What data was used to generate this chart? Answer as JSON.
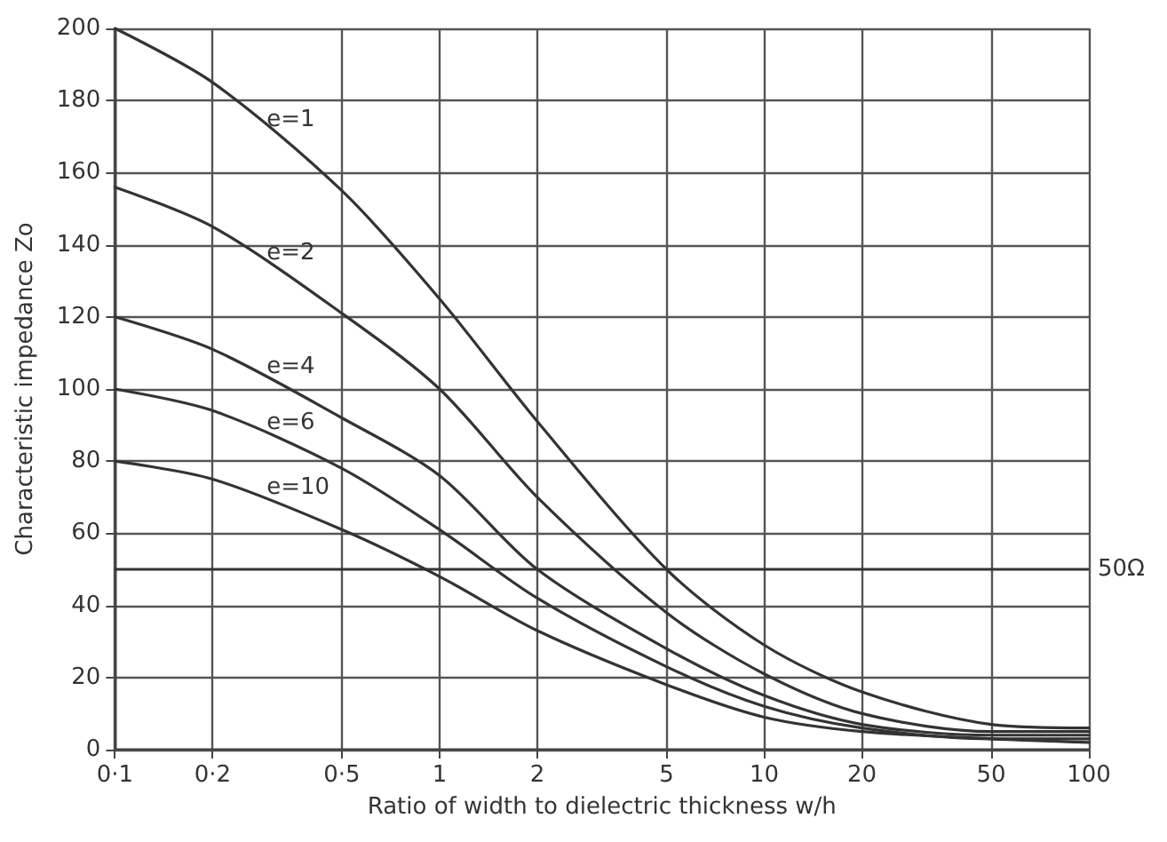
{
  "chart_data": {
    "type": "line",
    "xlabel": "Ratio of width to dielectric thickness w/h",
    "ylabel": "Characteristic impedance Zo",
    "x": [
      0.1,
      0.2,
      0.5,
      1,
      2,
      5,
      10,
      20,
      50,
      100
    ],
    "series": [
      {
        "name": "e=1",
        "color": "#333333",
        "values": [
          200,
          185,
          155,
          125,
          91,
          50,
          29,
          16,
          7,
          6
        ]
      },
      {
        "name": "e=2",
        "color": "#333333",
        "values": [
          156,
          145,
          121,
          100,
          70,
          38,
          21,
          10,
          5,
          5
        ]
      },
      {
        "name": "e=4",
        "color": "#333333",
        "values": [
          120,
          111,
          92,
          76,
          50,
          28,
          15,
          7,
          4,
          4
        ]
      },
      {
        "name": "e=6",
        "color": "#333333",
        "values": [
          100,
          94,
          78,
          61,
          42,
          23,
          12,
          6,
          3,
          3
        ]
      },
      {
        "name": "e=10",
        "color": "#333333",
        "values": [
          80,
          75,
          61,
          48,
          33,
          18,
          9,
          5,
          3,
          2
        ]
      }
    ],
    "log": "x",
    "xlim": [
      0.1,
      100
    ],
    "xticks": [
      {
        "value": 0.1,
        "label": "0·1"
      },
      {
        "value": 0.2,
        "label": "0·2"
      },
      {
        "value": 0.5,
        "label": "0·5"
      },
      1,
      2,
      5,
      10,
      20,
      50,
      100
    ],
    "ylim": [
      0,
      200
    ],
    "yticks": [
      0,
      20,
      40,
      60,
      80,
      100,
      120,
      140,
      160,
      180,
      200
    ],
    "ref_lines": [
      {
        "axis": "y",
        "value": 50,
        "label": "50Ω",
        "color": "#333333"
      }
    ],
    "grid": true,
    "legend": false,
    "marker": "none",
    "line_style": "solid"
  }
}
